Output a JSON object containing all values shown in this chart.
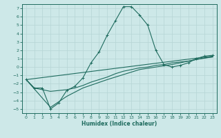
{
  "xlabel": "Humidex (Indice chaleur)",
  "bg_color": "#cde8e8",
  "grid_color": "#b5d5d5",
  "line_color": "#1e6b5e",
  "xlim": [
    -0.5,
    23.5
  ],
  "ylim": [
    -5.5,
    7.5
  ],
  "xticks": [
    0,
    1,
    2,
    3,
    4,
    5,
    6,
    7,
    8,
    9,
    10,
    11,
    12,
    13,
    14,
    15,
    16,
    17,
    18,
    19,
    20,
    21,
    22,
    23
  ],
  "yticks": [
    -5,
    -4,
    -3,
    -2,
    -1,
    0,
    1,
    2,
    3,
    4,
    5,
    6,
    7
  ],
  "series1": [
    [
      0,
      -1.5
    ],
    [
      1,
      -2.5
    ],
    [
      2,
      -2.5
    ],
    [
      3,
      -5.0
    ],
    [
      4,
      -4.3
    ],
    [
      5,
      -2.8
    ],
    [
      6,
      -2.3
    ],
    [
      7,
      -1.3
    ],
    [
      8,
      0.5
    ],
    [
      9,
      1.8
    ],
    [
      10,
      3.8
    ],
    [
      11,
      5.5
    ],
    [
      12,
      7.2
    ],
    [
      13,
      7.2
    ],
    [
      14,
      6.2
    ],
    [
      15,
      5.0
    ],
    [
      16,
      2.0
    ],
    [
      17,
      0.3
    ],
    [
      18,
      0.0
    ],
    [
      19,
      0.2
    ],
    [
      20,
      0.5
    ],
    [
      21,
      1.0
    ],
    [
      22,
      1.3
    ],
    [
      23,
      1.4
    ]
  ],
  "series2": [
    [
      0,
      -1.5
    ],
    [
      1,
      -2.5
    ],
    [
      2,
      -2.7
    ],
    [
      3,
      -2.9
    ],
    [
      4,
      -2.8
    ],
    [
      5,
      -2.7
    ],
    [
      6,
      -2.5
    ],
    [
      7,
      -2.2
    ],
    [
      8,
      -1.8
    ],
    [
      9,
      -1.5
    ],
    [
      10,
      -1.2
    ],
    [
      11,
      -0.8
    ],
    [
      12,
      -0.5
    ],
    [
      13,
      -0.3
    ],
    [
      14,
      -0.1
    ],
    [
      15,
      0.0
    ],
    [
      16,
      0.2
    ],
    [
      17,
      0.3
    ],
    [
      18,
      0.5
    ],
    [
      19,
      0.6
    ],
    [
      20,
      0.7
    ],
    [
      21,
      0.9
    ],
    [
      22,
      1.1
    ],
    [
      23,
      1.2
    ]
  ],
  "series3": [
    [
      0,
      -1.5
    ],
    [
      23,
      1.3
    ]
  ],
  "series4": [
    [
      0,
      -1.5
    ],
    [
      3,
      -4.8
    ],
    [
      5,
      -3.5
    ],
    [
      7,
      -2.5
    ],
    [
      10,
      -1.5
    ],
    [
      14,
      -0.3
    ],
    [
      18,
      0.3
    ],
    [
      21,
      0.9
    ],
    [
      23,
      1.2
    ]
  ]
}
